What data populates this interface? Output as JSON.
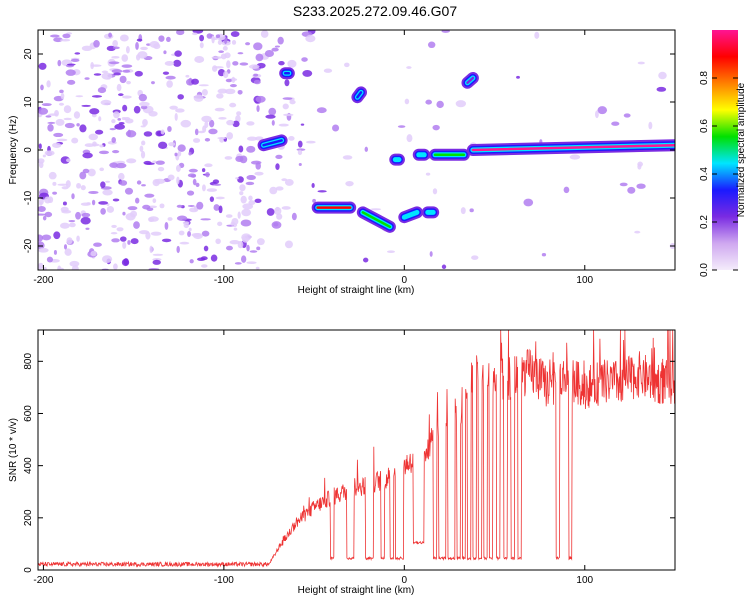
{
  "title": "S233.2025.272.09.46.G07",
  "chart_data": [
    {
      "type": "heatmap",
      "xlabel": "Height of straight line (km)",
      "ylabel": "Frequency (Hz)",
      "xlim": [
        -203,
        150
      ],
      "ylim": [
        -25,
        25
      ],
      "xticks": [
        -200,
        -100,
        0,
        100
      ],
      "yticks": [
        -20,
        -10,
        0,
        10,
        20
      ],
      "colorbar": {
        "label": "Normalized spectral amplitude",
        "range": [
          0,
          1
        ],
        "ticks": [
          0.0,
          0.2,
          0.4,
          0.6,
          0.8
        ],
        "tick_labels": [
          "0.0",
          "0.2",
          "0.4",
          "0.6",
          "0.8"
        ],
        "colors": [
          "#f4ecfb",
          "#cfa8f0",
          "#7a2be2",
          "#1a1aff",
          "#00e5ff",
          "#00e000",
          "#ffff00",
          "#ff8000",
          "#ff0000",
          "#ff1493"
        ]
      },
      "tracks": [
        {
          "x": [
            -78,
            -68
          ],
          "y": [
            1,
            2
          ],
          "amp": 0.35
        },
        {
          "x": [
            -66,
            -64
          ],
          "y": [
            16,
            16
          ],
          "amp": 0.3
        },
        {
          "x": [
            -48,
            -30
          ],
          "y": [
            -12,
            -12
          ],
          "amp": 0.85
        },
        {
          "x": [
            -26,
            -24
          ],
          "y": [
            11,
            12
          ],
          "amp": 0.3
        },
        {
          "x": [
            -23,
            -8
          ],
          "y": [
            -13,
            -16
          ],
          "amp": 0.5
        },
        {
          "x": [
            -5,
            -3
          ],
          "y": [
            -2,
            -2
          ],
          "amp": 0.45
        },
        {
          "x": [
            0,
            7
          ],
          "y": [
            -14,
            -13
          ],
          "amp": 0.45
        },
        {
          "x": [
            8,
            11
          ],
          "y": [
            -1,
            -1
          ],
          "amp": 0.45
        },
        {
          "x": [
            13,
            16
          ],
          "y": [
            -13,
            -13
          ],
          "amp": 0.45
        },
        {
          "x": [
            17,
            33
          ],
          "y": [
            -1,
            -1
          ],
          "amp": 0.5
        },
        {
          "x": [
            35,
            38
          ],
          "y": [
            14,
            15
          ],
          "amp": 0.2
        },
        {
          "x": [
            38,
            150
          ],
          "y": [
            0,
            1
          ],
          "amp": 0.95
        }
      ]
    },
    {
      "type": "line",
      "xlabel": "Height of straight line (km)",
      "ylabel": "SNR (10 * v/v)",
      "xlim": [
        -203,
        150
      ],
      "ylim": [
        0,
        920
      ],
      "xticks": [
        -200,
        -100,
        0,
        100
      ],
      "yticks": [
        0,
        200,
        400,
        600,
        800
      ],
      "color": "#ee3333",
      "envelope": {
        "x": [
          -203,
          -75,
          -70,
          -60,
          -50,
          -40,
          -30,
          -20,
          -10,
          0,
          10,
          20,
          30,
          35,
          40,
          50,
          60,
          70,
          80,
          90,
          100,
          110,
          120,
          130,
          140,
          150
        ],
        "y": [
          22,
          22,
          80,
          180,
          240,
          280,
          310,
          330,
          350,
          400,
          450,
          540,
          600,
          700,
          740,
          720,
          740,
          760,
          700,
          740,
          700,
          720,
          720,
          750,
          720,
          720
        ]
      },
      "dips": [
        {
          "x": [
            -40,
            2
          ],
          "y": 40
        },
        {
          "x": [
            -30,
            4
          ],
          "y": 40
        },
        {
          "x": [
            -20,
            3
          ],
          "y": 40
        },
        {
          "x": [
            -18,
            2
          ],
          "y": 40
        },
        {
          "x": [
            -12,
            2
          ],
          "y": 40
        },
        {
          "x": [
            -7,
            2
          ],
          "y": 40
        },
        {
          "x": [
            -4,
            2
          ],
          "y": 40
        },
        {
          "x": [
            -2,
            3
          ],
          "y": 40
        },
        {
          "x": [
            8,
            6
          ],
          "y": 100
        },
        {
          "x": [
            17,
            2
          ],
          "y": 40
        },
        {
          "x": [
            20,
            2
          ],
          "y": 40
        },
        {
          "x": [
            22,
            2
          ],
          "y": 40
        },
        {
          "x": [
            25,
            2
          ],
          "y": 40
        },
        {
          "x": [
            27,
            2
          ],
          "y": 40
        },
        {
          "x": [
            30,
            2
          ],
          "y": 40
        },
        {
          "x": [
            33,
            2
          ],
          "y": 40
        },
        {
          "x": [
            36,
            2
          ],
          "y": 40
        },
        {
          "x": [
            39,
            2
          ],
          "y": 40
        },
        {
          "x": [
            42,
            2
          ],
          "y": 40
        },
        {
          "x": [
            45,
            2
          ],
          "y": 40
        },
        {
          "x": [
            48,
            2
          ],
          "y": 40
        },
        {
          "x": [
            52,
            2
          ],
          "y": 40
        },
        {
          "x": [
            56,
            2
          ],
          "y": 40
        },
        {
          "x": [
            60,
            2
          ],
          "y": 40
        },
        {
          "x": [
            64,
            2
          ],
          "y": 40
        },
        {
          "x": [
            85,
            2
          ],
          "y": 40
        },
        {
          "x": [
            92,
            2
          ],
          "y": 40
        }
      ]
    }
  ]
}
